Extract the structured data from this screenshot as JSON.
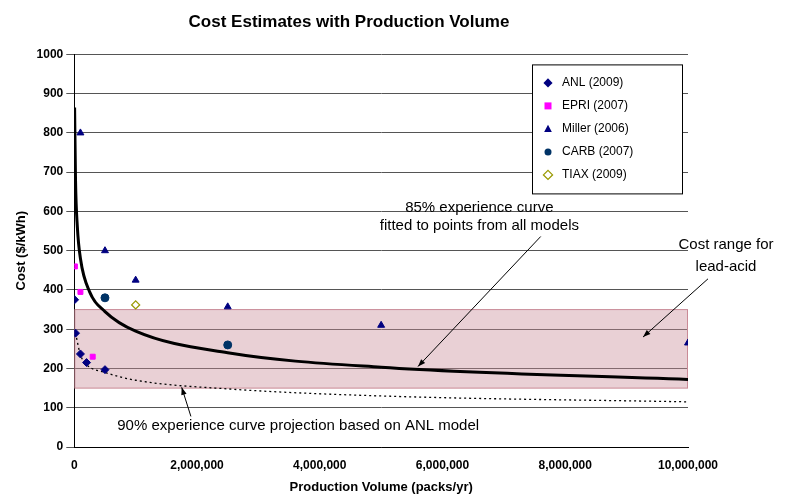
{
  "chart_data": {
    "type": "scatter",
    "title": "Cost Estimates with Production Volume",
    "x_label": "Production Volume (packs/yr)",
    "y_label": "Cost ($/kWh)",
    "xlim": [
      0,
      10000000
    ],
    "xticks": [
      0,
      {
        "value": 2000000,
        "label": "2,000,000"
      },
      {
        "value": 4000000,
        "label": "4,000,000"
      },
      {
        "value": 6000000,
        "label": "6,000,000"
      },
      {
        "value": 8000000,
        "label": "8,000,000"
      },
      {
        "value": 10000000,
        "label": "10,000,000"
      }
    ],
    "ylim": [
      0,
      1000
    ],
    "yticks": [
      0,
      100,
      200,
      300,
      400,
      500,
      600,
      700,
      800,
      900,
      1000
    ],
    "grid": "y",
    "legend": "upper right",
    "series": [
      {
        "name": "ANL (2009)",
        "color": "#000080",
        "marker": "diamond",
        "x": [
          5000,
          20000,
          100000,
          200000,
          500000
        ],
        "values": [
          375,
          290,
          237,
          215,
          197
        ]
      },
      {
        "name": "EPRI (2007)",
        "color": "#ff00ff",
        "marker": "square",
        "x": [
          10000,
          100000,
          300000
        ],
        "values": [
          460,
          395,
          230
        ]
      },
      {
        "name": "Miller (2006)",
        "color": "#000080",
        "marker": "triangle",
        "x": [
          100000,
          500000,
          1000000,
          2500000,
          5000000,
          10000000
        ],
        "values": [
          800,
          500,
          425,
          357,
          310,
          265
        ]
      },
      {
        "name": "CARB (2007)",
        "color": "#003366",
        "marker": "circle",
        "x": [
          500000,
          2500000
        ],
        "values": [
          380,
          260
        ]
      },
      {
        "name": "TIAX (2009)",
        "color": "#999900",
        "marker": "open-diamond",
        "x": [
          1000000
        ],
        "values": [
          362
        ]
      }
    ],
    "curves": [
      {
        "label": [
          "85% experience curve",
          "fitted to points from all models"
        ],
        "type": "line",
        "color": "#000000",
        "line_style": "solid",
        "x": [
          5000,
          20000,
          50000,
          100000,
          250000,
          500000,
          1000000,
          2500000,
          5000000,
          10000000
        ],
        "values": [
          865,
          680,
          560,
          480,
          395,
          345,
          295,
          240,
          203,
          172
        ]
      },
      {
        "label": [
          "90% experience curve projection based on ANL model"
        ],
        "type": "line",
        "color": "#000000",
        "line_style": "dotted",
        "x": [
          20000,
          100000,
          200000,
          500000,
          1000000,
          2500000,
          5000000,
          10000000
        ],
        "values": [
          290,
          235,
          210,
          190,
          170,
          148,
          130,
          115
        ]
      }
    ],
    "band": {
      "label": [
        "Cost range for",
        "lead-acid"
      ],
      "range": [
        150,
        350
      ],
      "color": "#c98a96"
    }
  }
}
